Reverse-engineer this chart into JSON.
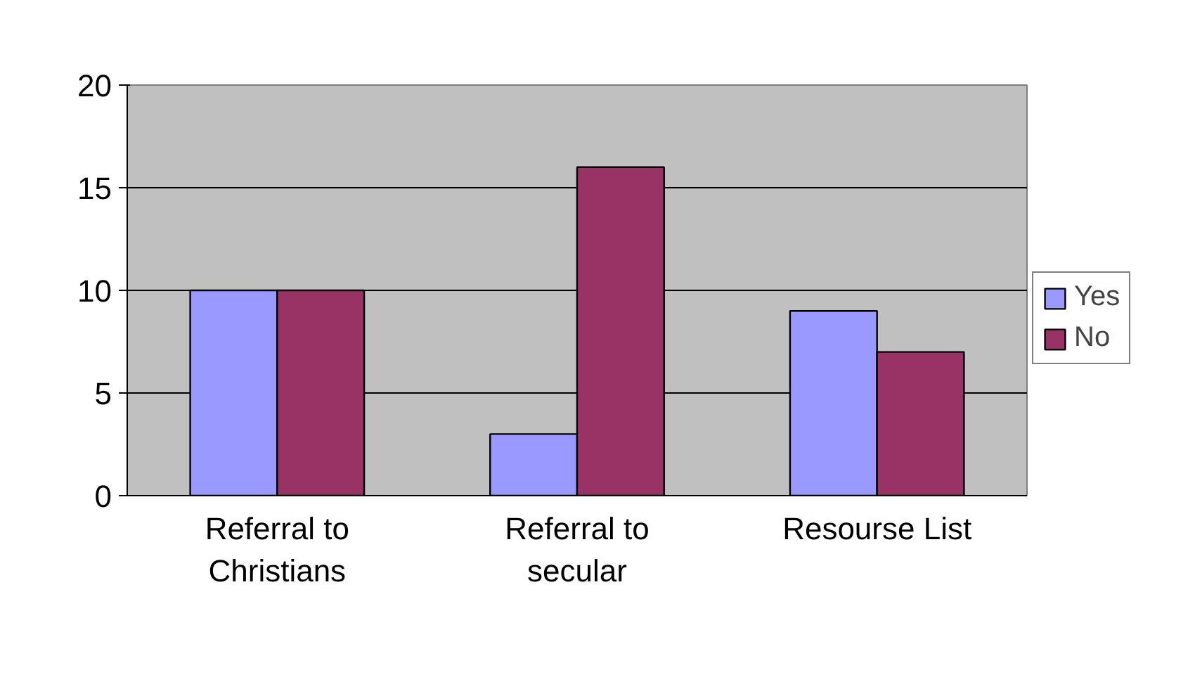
{
  "chart_data": {
    "type": "bar",
    "categories": [
      "Referral to Christians",
      "Referral to secular",
      "Resourse List"
    ],
    "series": [
      {
        "name": "Yes",
        "color": "#9999ff",
        "values": [
          10,
          3,
          9
        ]
      },
      {
        "name": "No",
        "color": "#993366",
        "values": [
          10,
          16,
          7
        ]
      }
    ],
    "ylim": [
      0,
      20
    ],
    "yticks": [
      0,
      5,
      10,
      15,
      20
    ],
    "grid": "y",
    "legend": "right"
  }
}
